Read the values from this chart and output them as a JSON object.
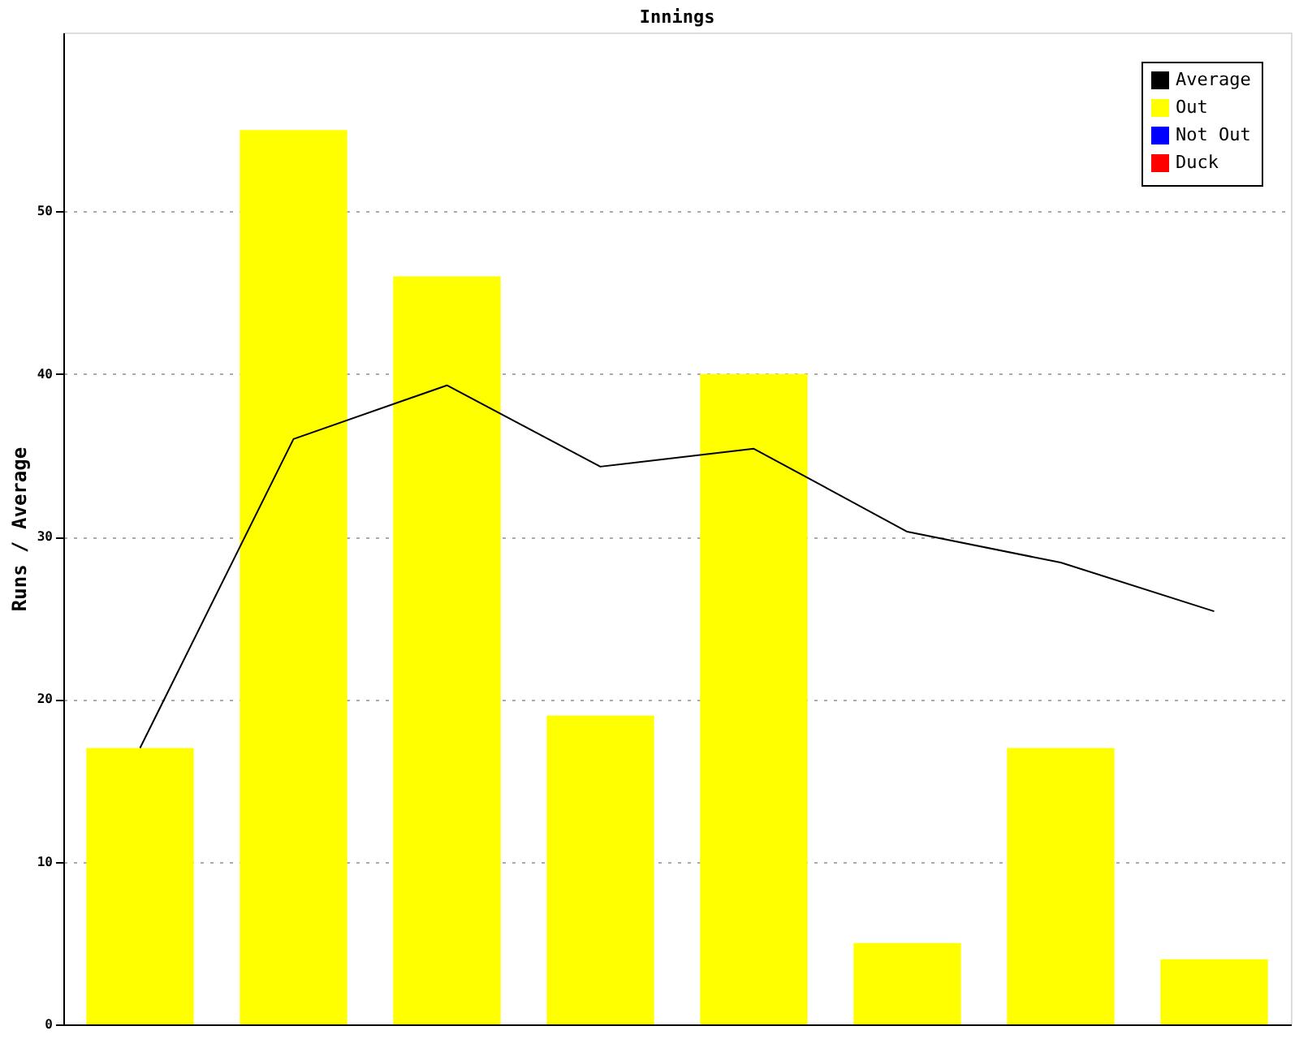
{
  "chart_data": {
    "type": "bar",
    "title": "Innings",
    "ylabel": "Runs / Average",
    "categories": [
      null,
      null,
      null,
      null,
      null,
      null,
      null,
      null
    ],
    "series": [
      {
        "name": "Average",
        "type": "line",
        "color": "#000000",
        "values": [
          17,
          36,
          39.3,
          34.3,
          35.4,
          30.3,
          28.4,
          25.4
        ]
      },
      {
        "name": "Out",
        "color": "#ffff00",
        "values": [
          17,
          55,
          46,
          19,
          40,
          5,
          17,
          4
        ]
      },
      {
        "name": "Not Out",
        "color": "#0000ff",
        "values": [
          null,
          null,
          null,
          null,
          null,
          null,
          null,
          null
        ]
      },
      {
        "name": "Duck",
        "color": "#ff0000",
        "values": [
          null,
          null,
          null,
          null,
          null,
          null,
          null,
          null
        ]
      }
    ],
    "ylim": [
      0,
      61
    ],
    "yticks": [
      0,
      10,
      20,
      30,
      40,
      50
    ],
    "grid": "y",
    "legend": "top right",
    "tick_labels": "y",
    "line_style": "solid",
    "marker": "none"
  }
}
